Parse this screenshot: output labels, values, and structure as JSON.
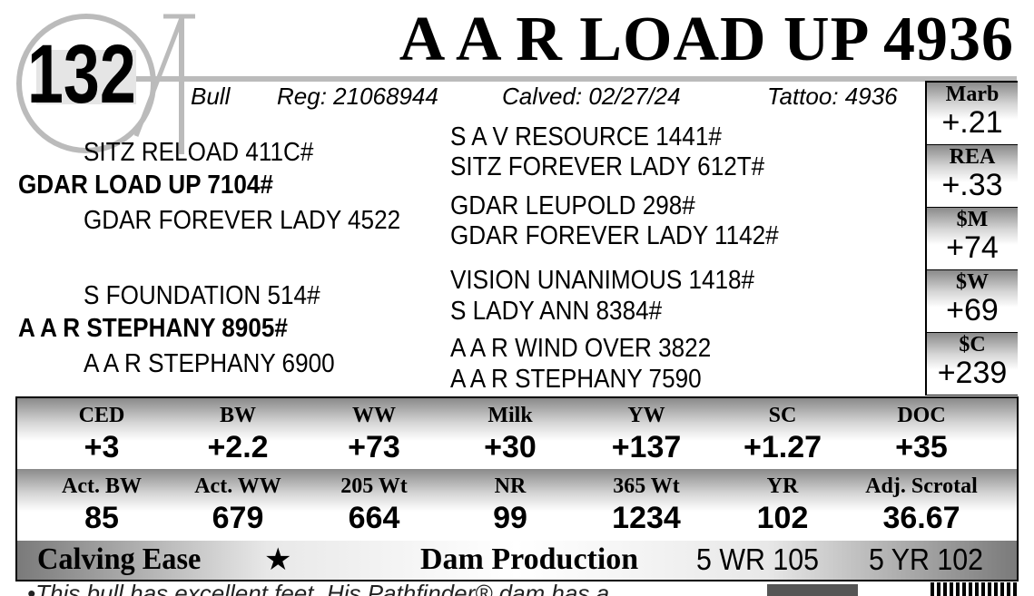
{
  "lot": "132",
  "title": "A A R LOAD UP 4936",
  "info": {
    "sex": "Bull",
    "reg": "Reg: 21068944",
    "calved": "Calved: 02/27/24",
    "tattoo": "Tattoo: 4936"
  },
  "pedigree": {
    "sire": "GDAR LOAD UP 7104#",
    "sire_sire": "SITZ RELOAD 411C#",
    "sire_dam": "GDAR FOREVER LADY 4522",
    "dam": "A A R STEPHANY 8905#",
    "dam_sire": "S FOUNDATION 514#",
    "dam_dam": "A A R STEPHANY 6900",
    "far": [
      "S A V RESOURCE 1441#",
      "SITZ FOREVER LADY 612T#",
      "GDAR LEUPOLD 298#",
      "GDAR FOREVER LADY 1142#",
      "VISION UNANIMOUS 1418#",
      "S LADY ANN 8384#",
      "A A R WIND OVER 3822",
      "A A R STEPHANY 7590"
    ]
  },
  "side_epds": [
    {
      "label": "Marb",
      "value": "+.21"
    },
    {
      "label": "REA",
      "value": "+.33"
    },
    {
      "label": "$M",
      "value": "+74"
    },
    {
      "label": "$W",
      "value": "+69"
    },
    {
      "label": "$C",
      "value": "+239"
    }
  ],
  "epds": [
    {
      "label": "CED",
      "value": "+3"
    },
    {
      "label": "BW",
      "value": "+2.2"
    },
    {
      "label": "WW",
      "value": "+73"
    },
    {
      "label": "Milk",
      "value": "+30"
    },
    {
      "label": "YW",
      "value": "+137"
    },
    {
      "label": "SC",
      "value": "+1.27"
    },
    {
      "label": "DOC",
      "value": "+35"
    }
  ],
  "actuals": [
    {
      "label": "Act. BW",
      "value": "85"
    },
    {
      "label": "Act. WW",
      "value": "679"
    },
    {
      "label": "205 Wt",
      "value": "664"
    },
    {
      "label": "NR",
      "value": "99"
    },
    {
      "label": "365 Wt",
      "value": "1234"
    },
    {
      "label": "YR",
      "value": "102"
    },
    {
      "label": "Adj. Scrotal",
      "value": "36.67"
    }
  ],
  "bottom": {
    "calving_ease": "Calving Ease",
    "star": "★",
    "dam_production": "Dam Production",
    "wr": "5 WR 105",
    "yr": "5 YR 102"
  },
  "footnote": "•This bull has excellent feet. His Pathfinder® dam has a"
}
